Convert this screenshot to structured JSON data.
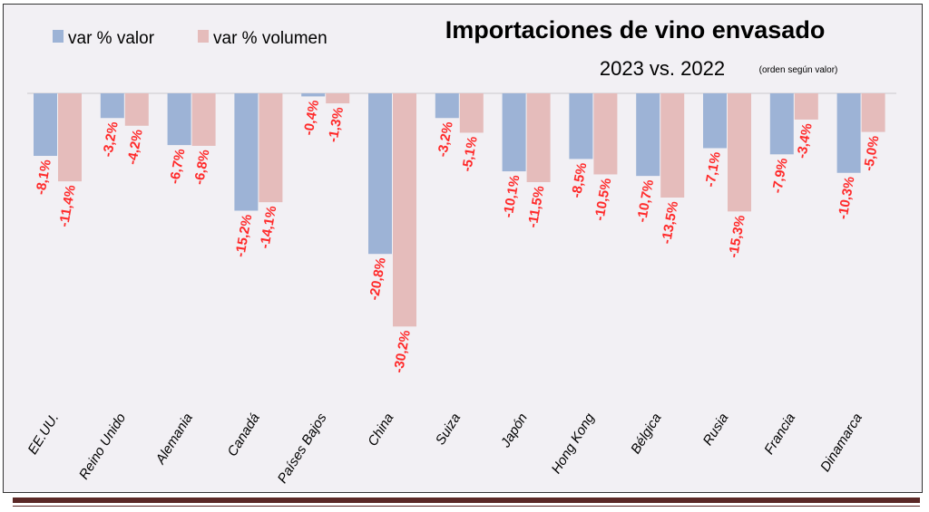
{
  "chart_data": {
    "type": "bar",
    "title": "Importaciones de vino envasado",
    "subtitle": "2023 vs. 2022",
    "subtitle_note": "(orden según valor)",
    "categories": [
      "EE.UU.",
      "Reino Unido",
      "Alemania",
      "Canadá",
      "Países Bajos",
      "China",
      "Suiza",
      "Japón",
      "Hong Kong",
      "Bélgica",
      "Rusia",
      "Francia",
      "Dinamarca"
    ],
    "series": [
      {
        "name": "var % valor",
        "color": "#9db3d6",
        "values": [
          -8.1,
          -3.2,
          -6.7,
          -15.2,
          -0.4,
          -20.8,
          -3.2,
          -10.1,
          -8.5,
          -10.7,
          -7.1,
          -7.9,
          -10.3
        ]
      },
      {
        "name": "var % volumen",
        "color": "#e5bcbb",
        "values": [
          -11.4,
          -4.2,
          -6.8,
          -14.1,
          -1.3,
          -30.2,
          -5.1,
          -11.5,
          -10.5,
          -13.5,
          -15.3,
          -3.4,
          -5.0
        ]
      }
    ],
    "data_labels": {
      "var % valor": [
        "-8,1%",
        "-3,2%",
        "-6,7%",
        "-15,2%",
        "-0,4%",
        "-20,8%",
        "-3,2%",
        "-10,1%",
        "-8,5%",
        "-10,7%",
        "-7,1%",
        "-7,9%",
        "-10,3%"
      ],
      "var % volumen": [
        "-11,4%",
        "-4,2%",
        "-6,8%",
        "-14,1%",
        "-1,3%",
        "-30,2%",
        "-5,1%",
        "-11,5%",
        "-10,5%",
        "-13,5%",
        "-15,3%",
        "-3,4%",
        "-5,0%"
      ]
    },
    "label_color": "#ff2a2a",
    "ylim": [
      -40,
      0
    ],
    "grid": false,
    "legend_position": "top-left"
  }
}
